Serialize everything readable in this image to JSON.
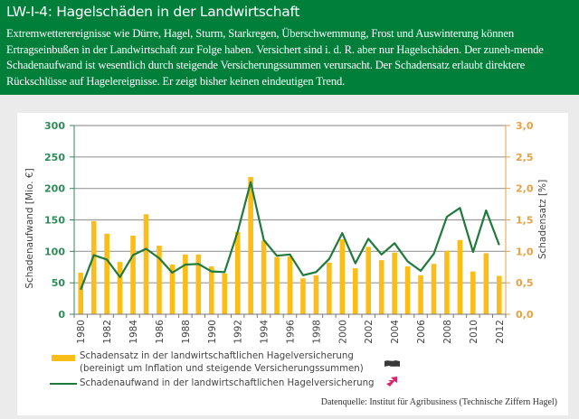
{
  "header": {
    "title": "LW-I-4: Hagelschäden in der Landwirtschaft",
    "description": "Extremwetterereignisse wie Dürre, Hagel, Sturm, Starkregen, Überschwemmung, Frost und Auswinterung können Ertragseinbußen in der Landwirtschaft zur Folge haben. Versichert sind i. d. R. aber nur Hagelschäden. Der zuneh-mende Schadenaufwand ist wesentlich durch steigende Versicherungssummen verursacht. Der Schadensatz erlaubt direktere Rückschlüsse auf Hagelereignisse. Er zeigt bisher keinen eindeutigen Trend."
  },
  "colors": {
    "header_bg": "#007f3a",
    "bar": "#fbbd16",
    "line": "#1f7a3c",
    "left_axis": "#2e8b57",
    "right_axis": "#e8a040",
    "trend_none": "#3a3a3a",
    "trend_up": "#d6256a"
  },
  "legend": {
    "bar_label_line1": "Schadensatz in der landwirtschaftlichen Hagelversicherung",
    "bar_label_line2": "(bereinigt um Inflation und steigende Versicherungssummen)",
    "line_label": "Schadenaufwand in der landwirtschaftlichen Hagelversicherung",
    "bar_trend_icon": "no-trend-flag-icon",
    "line_trend_icon": "rising-trend-arrow-icon"
  },
  "source": "Datenquelle: Institut für Agribusiness (Technische Ziffern Hagel)",
  "chart_data": {
    "type": "bar+line",
    "title": "",
    "categories": [
      "1980",
      "1981",
      "1982",
      "1983",
      "1984",
      "1985",
      "1986",
      "1987",
      "1988",
      "1989",
      "1990",
      "1991",
      "1992",
      "1993",
      "1994",
      "1995",
      "1996",
      "1997",
      "1998",
      "1999",
      "2000",
      "2001",
      "2002",
      "2003",
      "2004",
      "2005",
      "2006",
      "2007",
      "2008",
      "2009",
      "2010",
      "2011",
      "2012"
    ],
    "x_tick_labels": [
      "1980",
      "1982",
      "1984",
      "1986",
      "1988",
      "1990",
      "1992",
      "1994",
      "1996",
      "1998",
      "2000",
      "2002",
      "2004",
      "2006",
      "2008",
      "2010",
      "2012"
    ],
    "series": [
      {
        "name": "Schadensatz in der landwirtschaftlichen Hagelversicherung (bereinigt um Inflation und steigende Versicherungssummen)",
        "type": "bar",
        "axis": "right",
        "unit": "%",
        "values": [
          0.66,
          1.48,
          1.28,
          0.83,
          1.25,
          1.59,
          1.09,
          0.79,
          0.95,
          0.95,
          0.76,
          0.65,
          1.31,
          2.18,
          1.17,
          0.91,
          0.92,
          0.57,
          0.62,
          0.82,
          1.19,
          0.73,
          1.07,
          0.86,
          0.98,
          0.76,
          0.62,
          0.8,
          1.01,
          1.18,
          0.68,
          0.97,
          0.61
        ]
      },
      {
        "name": "Schadenaufwand in der landwirtschaftlichen Hagelversicherung",
        "type": "line",
        "axis": "left",
        "unit": "Mio. €",
        "values": [
          39,
          94,
          87,
          59,
          94,
          104,
          89,
          66,
          79,
          80,
          68,
          67,
          131,
          210,
          118,
          93,
          95,
          62,
          67,
          88,
          129,
          81,
          120,
          95,
          113,
          84,
          69,
          96,
          155,
          169,
          99,
          165,
          110
        ]
      }
    ],
    "ylabel_left": "Schadenaufwand [Mio. €]",
    "ylim_left": [
      0,
      300
    ],
    "yticks_left": [
      "0",
      "50",
      "100",
      "150",
      "200",
      "250",
      "300"
    ],
    "ylabel_right": "Schadensatz [%]",
    "ylim_right": [
      0,
      3.0
    ],
    "yticks_right": [
      "0,0",
      "0,5",
      "1,0",
      "1,5",
      "2,0",
      "2,5",
      "3,0"
    ],
    "grid": true,
    "legend_position": "bottom"
  }
}
